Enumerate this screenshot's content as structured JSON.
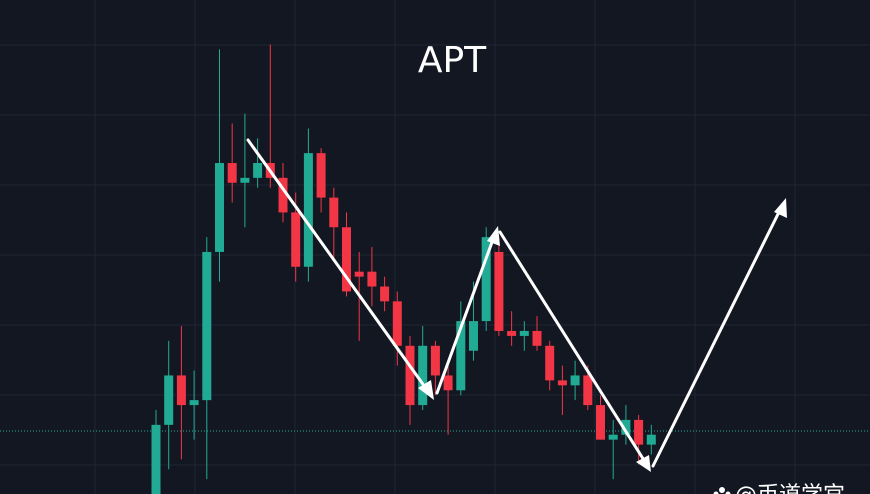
{
  "chart_data": {
    "type": "candlestick",
    "title": "APT",
    "watermark": "@币道学宫",
    "up_color": "#22ab94",
    "down_color": "#f23645",
    "ylim": [
      0,
      100
    ],
    "open": [
      0,
      14,
      24,
      18,
      19,
      49,
      67,
      63,
      64,
      67,
      64,
      57,
      46,
      69,
      60,
      54,
      45,
      45,
      42,
      39,
      30,
      18,
      30,
      24,
      21,
      29,
      35,
      49,
      33,
      32,
      33,
      30,
      23,
      22,
      24,
      18,
      11,
      12,
      15,
      10
    ],
    "high": [
      17,
      31,
      34,
      25,
      52,
      90,
      75,
      77,
      72,
      91,
      67,
      61,
      74,
      70,
      62,
      57,
      49,
      50,
      44,
      41,
      32,
      34,
      31,
      27,
      39,
      43,
      54,
      52,
      37,
      35,
      36,
      31,
      26,
      27,
      26,
      20,
      15,
      18,
      16,
      14
    ],
    "low": [
      0,
      5,
      7,
      11,
      3,
      43,
      59,
      54,
      62,
      62,
      55,
      43,
      43,
      57,
      47,
      40,
      31,
      38,
      37,
      26,
      14,
      17,
      20,
      12,
      20,
      27,
      33,
      32,
      30,
      29,
      29,
      21,
      16,
      19,
      17,
      11,
      3,
      10,
      6,
      8
    ],
    "close": [
      14,
      24,
      18,
      19,
      49,
      67,
      63,
      64,
      67,
      64,
      57,
      46,
      69,
      60,
      54,
      41,
      44,
      42,
      39,
      30,
      18,
      30,
      24,
      21,
      35,
      35,
      52,
      33,
      32,
      33,
      30,
      23,
      22,
      24,
      18,
      11,
      12,
      15,
      10,
      12
    ]
  }
}
